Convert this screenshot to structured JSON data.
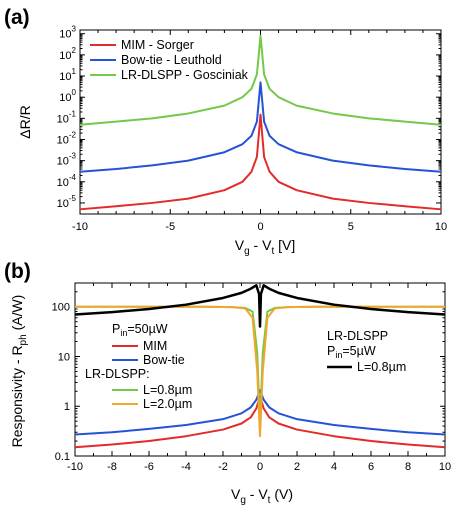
{
  "panels": [
    {
      "label": "(a)"
    },
    {
      "label": "(b)"
    }
  ],
  "chart_data": [
    {
      "type": "line",
      "panel_label": "(a)",
      "x_tick_labels": [
        "-10",
        "-5",
        "0",
        "5",
        "10"
      ],
      "y_tick_labels": [
        {
          "base": "10",
          "exp": "3"
        },
        {
          "base": "10",
          "exp": "2"
        },
        {
          "base": "10",
          "exp": "1"
        },
        {
          "base": "10",
          "exp": "0"
        },
        {
          "base": "10",
          "exp": "-1"
        },
        {
          "base": "10",
          "exp": "-2"
        },
        {
          "base": "10",
          "exp": "-3"
        },
        {
          "base": "10",
          "exp": "-4"
        },
        {
          "base": "10",
          "exp": "-5"
        }
      ],
      "xlabel": {
        "main": "V",
        "sub1": "g",
        "mid": " - V",
        "sub2": "t",
        "tail": " [V]"
      },
      "ylabel": "ΔR/R",
      "xlim": [
        -10,
        10
      ],
      "ylim": [
        3e-06,
        1500
      ],
      "yscale": "log",
      "legend_position": "top-left",
      "series": [
        {
          "name": "MIM - Sorger",
          "color": "#e32b2b",
          "x": [
            -10,
            -8,
            -6,
            -4,
            -2,
            -1,
            -0.5,
            -0.2,
            0,
            0.2,
            0.5,
            1,
            2,
            4,
            6,
            8,
            10
          ],
          "y": [
            5e-06,
            7e-06,
            1e-05,
            1.6e-05,
            4e-05,
            0.0001,
            0.0003,
            0.0015,
            0.15,
            0.0015,
            0.0003,
            0.0001,
            4e-05,
            1.6e-05,
            1e-05,
            7e-06,
            5e-06
          ]
        },
        {
          "name": "Bow-tie - Leuthold",
          "color": "#2553d6",
          "x": [
            -10,
            -8,
            -6,
            -4,
            -2,
            -1,
            -0.5,
            -0.2,
            0,
            0.2,
            0.5,
            1,
            2,
            4,
            6,
            8,
            10
          ],
          "y": [
            0.0003,
            0.0004,
            0.0006,
            0.001,
            0.0025,
            0.006,
            0.015,
            0.07,
            5,
            0.07,
            0.015,
            0.006,
            0.0025,
            0.001,
            0.0006,
            0.0004,
            0.0003
          ]
        },
        {
          "name": "LR-DLSPP - Gosciniak",
          "color": "#74c84a",
          "x": [
            -10,
            -8,
            -6,
            -4,
            -2,
            -1,
            -0.5,
            -0.2,
            0,
            0.2,
            0.5,
            1,
            2,
            4,
            6,
            8,
            10
          ],
          "y": [
            0.05,
            0.07,
            0.1,
            0.17,
            0.4,
            1,
            2.5,
            12,
            800,
            12,
            2.5,
            1,
            0.4,
            0.17,
            0.1,
            0.07,
            0.05
          ]
        }
      ]
    },
    {
      "type": "line",
      "panel_label": "(b)",
      "x_tick_labels": [
        "-10",
        "-8",
        "-6",
        "-4",
        "-2",
        "0",
        "2",
        "4",
        "6",
        "8",
        "10"
      ],
      "y_tick_labels": [
        "100",
        "10",
        "1",
        "0.1"
      ],
      "xlabel": {
        "main": "V",
        "sub1": "g",
        "mid": " - V",
        "sub2": "t",
        "tail": " (V)"
      },
      "ylabel": {
        "main": "Responsivity - R",
        "sub": "ph",
        "tail": " (A/W)"
      },
      "xlim": [
        -10,
        10
      ],
      "ylim": [
        0.1,
        300
      ],
      "yscale": "log",
      "legend_left": {
        "title": {
          "main": "P",
          "sub": "in",
          "tail": "=50µW"
        },
        "items_a": [
          {
            "series": "MIM",
            "label": "MIM"
          },
          {
            "series": "Bow-tie",
            "label": "Bow-tie"
          }
        ],
        "subtitle": "LR-DLSPP:",
        "items_b": [
          {
            "series": "L=0.8µm",
            "label": "L=0.8µm"
          },
          {
            "series": "L=2.0µm",
            "label": "L=2.0µm"
          }
        ]
      },
      "legend_right": {
        "line1": "LR-DLSPP",
        "line2": {
          "main": "P",
          "sub": "in",
          "tail": "=5µW"
        },
        "item": {
          "series": "black",
          "label": "L=0.8µm"
        }
      },
      "series": [
        {
          "name": "MIM",
          "color": "#e32b2b",
          "x": [
            -10,
            -8,
            -6,
            -4,
            -2,
            -1,
            -0.5,
            -0.2,
            0,
            0.2,
            0.5,
            1,
            2,
            4,
            6,
            8,
            10
          ],
          "y": [
            0.15,
            0.17,
            0.2,
            0.25,
            0.34,
            0.45,
            0.6,
            0.9,
            1.6,
            0.9,
            0.6,
            0.45,
            0.34,
            0.25,
            0.2,
            0.17,
            0.15
          ]
        },
        {
          "name": "Bow-tie",
          "color": "#2553d6",
          "x": [
            -10,
            -8,
            -6,
            -4,
            -2,
            -1,
            -0.5,
            -0.2,
            0,
            0.2,
            0.5,
            1,
            2,
            4,
            6,
            8,
            10
          ],
          "y": [
            0.27,
            0.3,
            0.35,
            0.42,
            0.55,
            0.72,
            0.95,
            1.35,
            2.1,
            1.35,
            0.95,
            0.72,
            0.55,
            0.42,
            0.35,
            0.3,
            0.27
          ]
        },
        {
          "name": "L=0.8µm",
          "color": "#74c84a",
          "x": [
            -10,
            -6,
            -3,
            -1.5,
            -0.8,
            -0.4,
            -0.15,
            0,
            0.15,
            0.4,
            0.8,
            1.5,
            3,
            6,
            10
          ],
          "y": [
            100,
            100,
            100,
            98,
            95,
            80,
            12,
            0.4,
            12,
            80,
            95,
            98,
            100,
            100,
            100
          ]
        },
        {
          "name": "L=2.0µm",
          "color": "#f4a52d",
          "x": [
            -10,
            -6,
            -3,
            -1.5,
            -0.8,
            -0.4,
            -0.15,
            0,
            0.15,
            0.4,
            0.8,
            1.5,
            3,
            6,
            10
          ],
          "y": [
            100,
            100,
            100,
            98,
            92,
            60,
            5,
            0.25,
            5,
            60,
            92,
            98,
            100,
            100,
            100
          ]
        },
        {
          "name": "black",
          "color": "#000000",
          "x": [
            -10,
            -8,
            -6,
            -4,
            -2,
            -1,
            -0.5,
            -0.2,
            -0.05,
            0,
            0.05,
            0.2,
            0.5,
            1,
            2,
            4,
            6,
            8,
            10
          ],
          "y": [
            70,
            78,
            90,
            110,
            150,
            190,
            230,
            270,
            180,
            40,
            180,
            270,
            230,
            190,
            150,
            110,
            90,
            78,
            70
          ]
        }
      ]
    }
  ]
}
